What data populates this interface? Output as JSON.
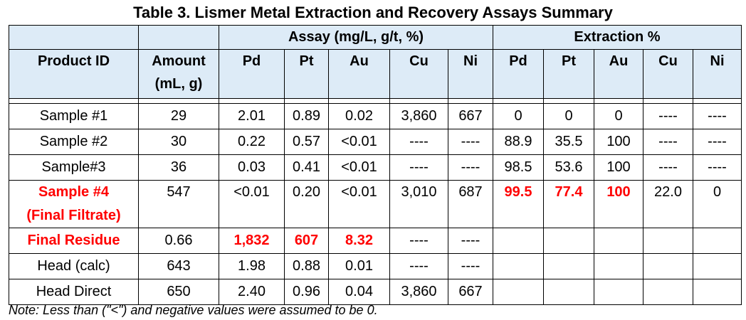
{
  "title": "Table 3. Lismer Metal Extraction and Recovery Assays Summary",
  "groups": {
    "assay": "Assay (mg/L, g/t, %)",
    "extraction": "Extraction %"
  },
  "columns": {
    "product_id": "Product ID",
    "amount_line1": "Amount",
    "amount_line2": "(mL, g)",
    "pd": "Pd",
    "pt": "Pt",
    "au": "Au",
    "cu": "Cu",
    "ni": "Ni",
    "ext_pd": "Pd",
    "ext_pt": "Pt",
    "ext_au": "Au",
    "ext_cu": "Cu",
    "ext_ni": "Ni"
  },
  "rows": [
    {
      "id": "Sample #1",
      "amount": "29",
      "pd": "2.01",
      "pt": "0.89",
      "au": "0.02",
      "cu": "3,860",
      "ni": "667",
      "ext_pd": "0",
      "ext_pt": "0",
      "ext_au": "0",
      "ext_cu": "----",
      "ext_ni": "----"
    },
    {
      "id": "Sample #2",
      "amount": "30",
      "pd": "0.22",
      "pt": "0.57",
      "au": "<0.01",
      "cu": "----",
      "ni": "----",
      "ext_pd": "88.9",
      "ext_pt": "35.5",
      "ext_au": "100",
      "ext_cu": "----",
      "ext_ni": "----"
    },
    {
      "id": "Sample#3",
      "amount": "36",
      "pd": "0.03",
      "pt": "0.41",
      "au": "<0.01",
      "cu": "----",
      "ni": "----",
      "ext_pd": "98.5",
      "ext_pt": "53.6",
      "ext_au": "100",
      "ext_cu": "----",
      "ext_ni": "----"
    },
    {
      "id_line1": "Sample #4",
      "id_line2": "(Final Filtrate)",
      "amount": "547",
      "pd": "<0.01",
      "pt": "0.20",
      "au": "<0.01",
      "cu": "3,010",
      "ni": "687",
      "ext_pd": "99.5",
      "ext_pt": "77.4",
      "ext_au": "100",
      "ext_cu": "22.0",
      "ext_ni": "0"
    },
    {
      "id": "Final Residue",
      "amount": "0.66",
      "pd": "1,832",
      "pt": "607",
      "au": "8.32",
      "cu": "----",
      "ni": "----"
    },
    {
      "id": "Head (calc)",
      "amount": "643",
      "pd": "1.98",
      "pt": "0.88",
      "au": "0.01",
      "cu": "----",
      "ni": "----"
    },
    {
      "id": "Head Direct",
      "amount": "650",
      "pd": "2.40",
      "pt": "0.96",
      "au": "0.04",
      "cu": "3,860",
      "ni": "667"
    }
  ],
  "note": "Note: Less than (\"<\") and negative values were assumed to be 0.",
  "colors": {
    "header_bg": "#ddebf7",
    "highlight_text": "#ff0000"
  }
}
